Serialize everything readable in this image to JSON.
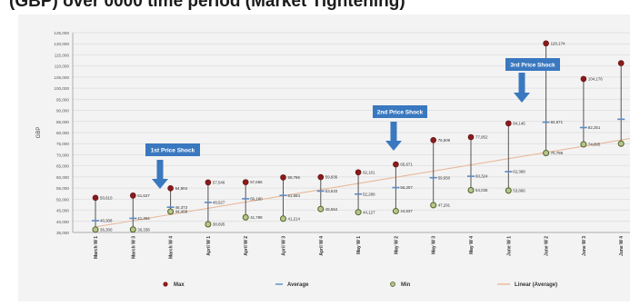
{
  "page_title": "(GBP) over 0000 time period (Market Tightening)",
  "chart_data": {
    "type": "line",
    "ylabel": "GBP",
    "ylim": [
      35000,
      125000
    ],
    "ystep": 5000,
    "grid": true,
    "yticks": [
      "35,000",
      "40,000",
      "45,000",
      "50,000",
      "55,000",
      "60,000",
      "65,000",
      "70,000",
      "75,000",
      "80,000",
      "85,000",
      "90,000",
      "95,000",
      "100,000",
      "105,000",
      "110,000",
      "115,000",
      "120,000",
      "125,000"
    ],
    "categories": [
      "March W 1",
      "March W 3",
      "March W 4",
      "April W 1",
      "April W 2",
      "April W 3",
      "April W 4",
      "May W 1",
      "May W 2",
      "May W 3",
      "May W 4",
      "June W 1",
      "June W 2",
      "June W 3",
      "June W 4"
    ],
    "series": [
      {
        "name": "Max",
        "color": "#8b1a1a",
        "values": [
          50610,
          51627,
          54904,
          57546,
          57656,
          59796,
          59936,
          62101,
          65671,
          76609,
          77952,
          84146,
          120174,
          104176,
          111300
        ],
        "labels": [
          "50,610",
          "51,627",
          "54,904",
          "57,546",
          "57,656",
          "59,796",
          "59,936",
          "62,101",
          "65,671",
          "76,609",
          "77,952",
          "84,146",
          "120,174",
          "104,176",
          ""
        ]
      },
      {
        "name": "Average",
        "color": "#5b8ac2",
        "values": [
          40308,
          41364,
          46373,
          48527,
          50180,
          51684,
          53633,
          52289,
          55207,
          59650,
          60324,
          62389,
          84671,
          82251,
          86000
        ],
        "labels": [
          "40,308",
          "41,364",
          "46,373",
          "48,527",
          "50,180",
          "51,684",
          "53,633",
          "52,289",
          "55,207",
          "59,650",
          "60,324",
          "62,389",
          "84,671",
          "82,251",
          ""
        ]
      },
      {
        "name": "Min",
        "color": "#4f6228",
        "values": [
          36300,
          36338,
          44408,
          38695,
          41789,
          41214,
          45554,
          44127,
          44637,
          47291,
          54035,
          53866,
          70798,
          74695,
          75000
        ],
        "labels": [
          "36,300",
          "36,338",
          "44,408",
          "38,695",
          "41,789",
          "41,214",
          "45,554",
          "44,127",
          "44,637",
          "47,291",
          "54,035",
          "53,866",
          "70,798",
          "74,695",
          ""
        ]
      },
      {
        "name": "Linear (Average)",
        "color": "#e8b89a",
        "trend_from": 37500,
        "trend_to": 78000
      }
    ],
    "annotations": [
      {
        "text": "1st Price Shock",
        "category_index": 2,
        "color": "#3a78c0"
      },
      {
        "text": "2nd Price Shock",
        "category_index": 8,
        "color": "#3a78c0"
      },
      {
        "text": "3rd Price Shock",
        "category_index": 12,
        "color": "#3a78c0"
      }
    ],
    "legend_position": "bottom"
  }
}
